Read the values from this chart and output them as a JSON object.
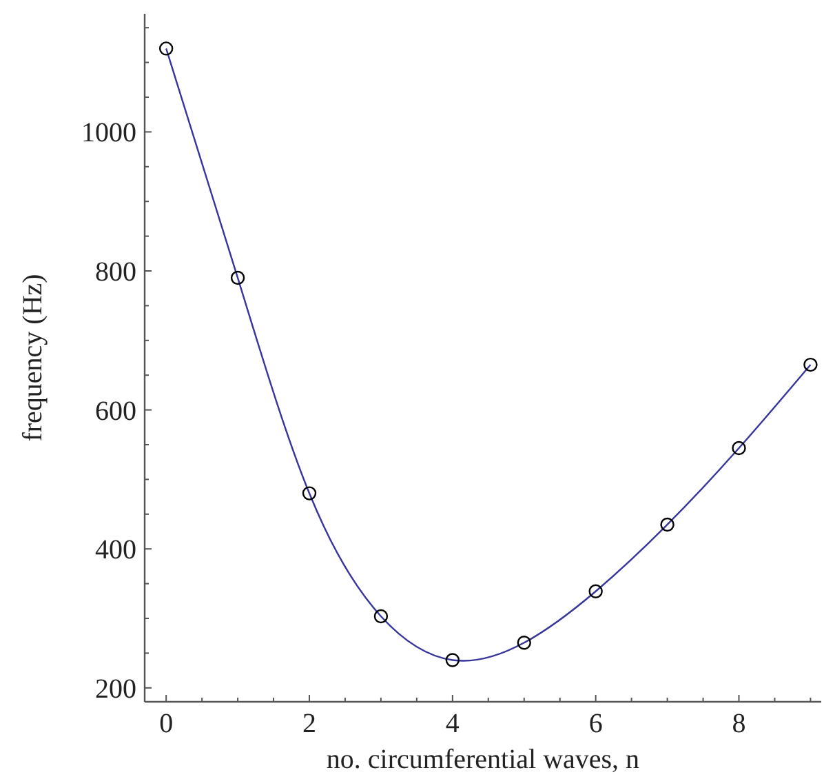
{
  "chart_data": {
    "type": "line",
    "xlabel": "no. circumferential waves, n",
    "ylabel": "frequency (Hz)",
    "x": [
      0,
      1,
      2,
      3,
      4,
      5,
      6,
      7,
      8,
      9
    ],
    "series": [
      {
        "color": "#35359b",
        "values": [
          1120,
          790,
          480,
          303,
          240,
          265,
          339,
          435,
          545,
          665
        ]
      }
    ],
    "xlim": [
      -0.3,
      9.15
    ],
    "ylim": [
      180,
      1170
    ],
    "xticks": [
      0,
      {
        "value": 0.5,
        "label": null
      },
      2,
      {
        "value": 1,
        "label": null
      },
      {
        "value": 1.5,
        "label": null
      },
      4,
      {
        "value": 2.5,
        "label": null
      },
      {
        "value": 3,
        "label": null
      },
      {
        "value": 3.5,
        "label": null
      },
      6,
      {
        "value": 4.5,
        "label": null
      },
      {
        "value": 5,
        "label": null
      },
      {
        "value": 5.5,
        "label": null
      },
      8,
      {
        "value": 6.5,
        "label": null
      },
      {
        "value": 7,
        "label": null
      },
      {
        "value": 7.5,
        "label": null
      },
      {
        "value": 8.5,
        "label": null
      },
      {
        "value": 9,
        "label": null
      }
    ],
    "yticks": [
      200,
      {
        "value": 250,
        "label": null
      },
      {
        "value": 300,
        "label": null
      },
      {
        "value": 350,
        "label": null
      },
      400,
      {
        "value": 450,
        "label": null
      },
      {
        "value": 500,
        "label": null
      },
      {
        "value": 550,
        "label": null
      },
      600,
      {
        "value": 650,
        "label": null
      },
      {
        "value": 700,
        "label": null
      },
      {
        "value": 750,
        "label": null
      },
      800,
      {
        "value": 850,
        "label": null
      },
      {
        "value": 900,
        "label": null
      },
      {
        "value": 950,
        "label": null
      },
      1000,
      {
        "value": 1050,
        "label": null
      },
      {
        "value": 1100,
        "label": null
      },
      {
        "value": 1150,
        "label": null
      }
    ],
    "marker": "circle",
    "line_style": "solid",
    "grid": false
  }
}
